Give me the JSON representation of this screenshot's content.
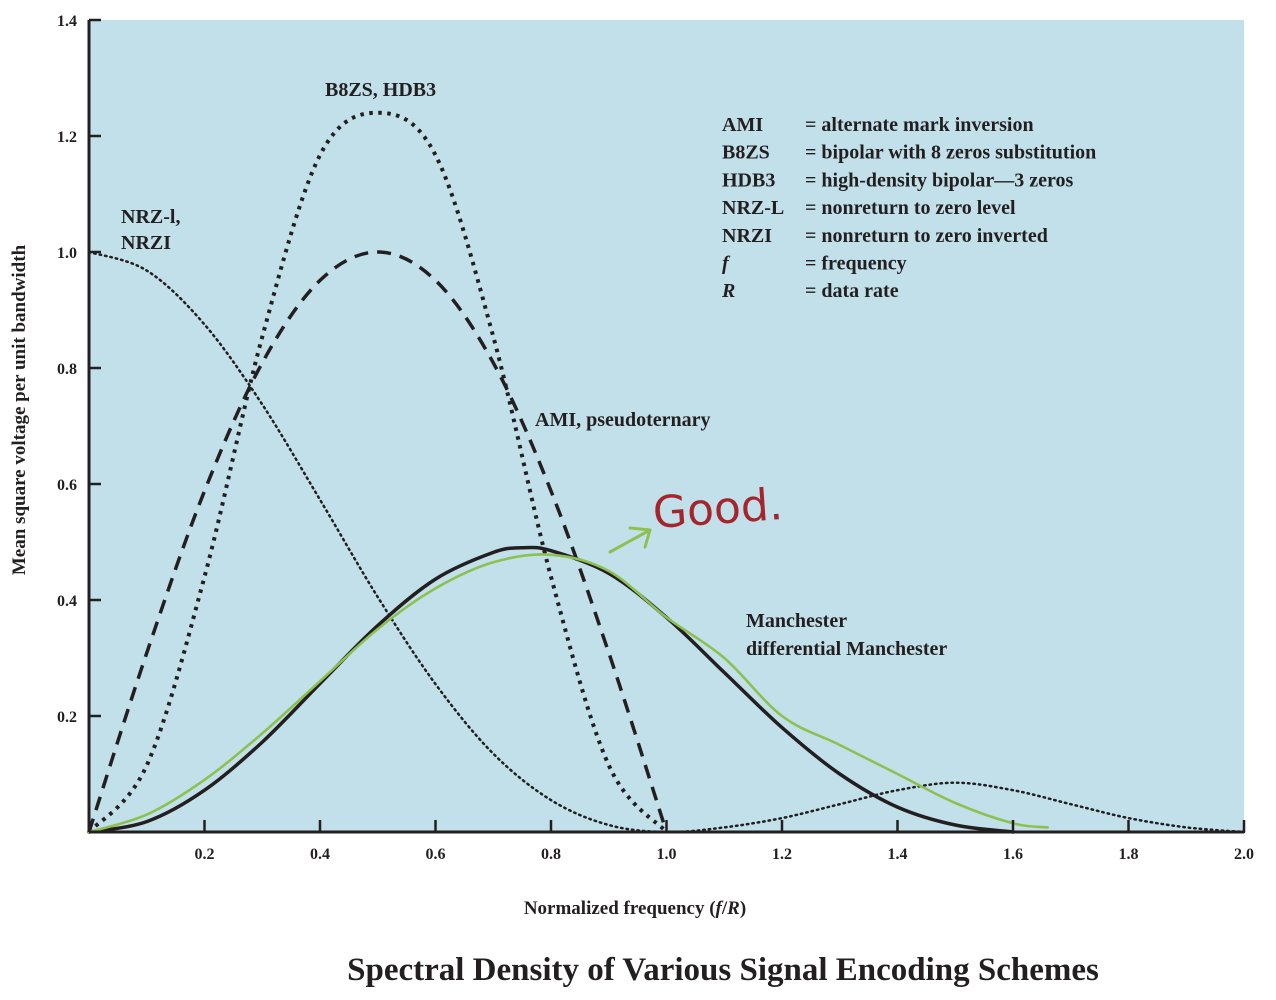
{
  "chart_data": {
    "type": "line",
    "title": "Spectral Density of Various Signal Encoding Schemes",
    "xlabel": "Normalized frequency (f/R)",
    "xlabel_parts": {
      "prefix": "Normalized frequency (",
      "f": "f",
      "slash": "/",
      "R": "R",
      "suffix": ")"
    },
    "ylabel": "Mean square voltage per unit bandwidth",
    "xlim": [
      0,
      2.0
    ],
    "ylim": [
      0,
      1.4
    ],
    "xticks": [
      {
        "v": 0.2,
        "label": "0.2"
      },
      {
        "v": 0.4,
        "label": "0.4"
      },
      {
        "v": 0.6,
        "label": "0.6"
      },
      {
        "v": 0.8,
        "label": "0.8"
      },
      {
        "v": 1.0,
        "label": "1.0"
      },
      {
        "v": 1.2,
        "label": "1.2"
      },
      {
        "v": 1.4,
        "label": "1.4"
      },
      {
        "v": 1.6,
        "label": "1.6"
      },
      {
        "v": 1.8,
        "label": "1.8"
      },
      {
        "v": 2.0,
        "label": "2.0"
      }
    ],
    "yticks": [
      {
        "v": 0.2,
        "label": "0.2"
      },
      {
        "v": 0.4,
        "label": "0.4"
      },
      {
        "v": 0.6,
        "label": "0.6"
      },
      {
        "v": 0.8,
        "label": "0.8"
      },
      {
        "v": 1.0,
        "label": "1.0"
      },
      {
        "v": 1.2,
        "label": "1.2"
      },
      {
        "v": 1.4,
        "label": "1.4"
      }
    ],
    "grid": false,
    "plot_background": "#c1e0ea",
    "series": [
      {
        "name": "NRZ-l, NRZI",
        "style": "dotted-fine",
        "x": [
          0,
          0.1,
          0.2,
          0.3,
          0.4,
          0.5,
          0.6,
          0.7,
          0.8,
          0.9,
          1.0,
          1.1,
          1.2,
          1.3,
          1.4,
          1.5,
          1.6,
          1.7,
          1.8,
          1.9,
          2.0
        ],
        "y": [
          1.0,
          0.968,
          0.875,
          0.737,
          0.573,
          0.405,
          0.255,
          0.135,
          0.055,
          0.012,
          0.0,
          0.008,
          0.024,
          0.048,
          0.072,
          0.085,
          0.072,
          0.048,
          0.024,
          0.008,
          0.0
        ]
      },
      {
        "name": "B8ZS, HDB3",
        "style": "dotted-heavy",
        "x": [
          0,
          0.1,
          0.2,
          0.3,
          0.4,
          0.5,
          0.6,
          0.7,
          0.8,
          0.9,
          1.0
        ],
        "y": [
          0.0,
          0.115,
          0.44,
          0.854,
          1.167,
          1.24,
          1.167,
          0.854,
          0.44,
          0.115,
          0.0
        ]
      },
      {
        "name": "AMI, pseudoternary",
        "style": "dashed",
        "x": [
          0,
          0.1,
          0.2,
          0.3,
          0.4,
          0.5,
          0.6,
          0.7,
          0.8,
          0.9,
          1.0
        ],
        "y": [
          0.0,
          0.309,
          0.588,
          0.809,
          0.951,
          1.0,
          0.951,
          0.809,
          0.588,
          0.309,
          0.0
        ]
      },
      {
        "name": "Manchester differential Manchester",
        "style": "solid",
        "x": [
          0,
          0.1,
          0.2,
          0.3,
          0.4,
          0.5,
          0.6,
          0.7,
          0.75,
          0.8,
          0.9,
          1.0,
          1.1,
          1.2,
          1.3,
          1.4,
          1.5,
          1.6
        ],
        "y": [
          0.0,
          0.018,
          0.072,
          0.155,
          0.256,
          0.356,
          0.436,
          0.482,
          0.49,
          0.485,
          0.446,
          0.37,
          0.275,
          0.18,
          0.1,
          0.043,
          0.012,
          0.0
        ]
      },
      {
        "name": "hand-drawn annotation",
        "style": "freehand-green",
        "x": [
          0,
          0.1,
          0.2,
          0.3,
          0.4,
          0.5,
          0.6,
          0.7,
          0.8,
          0.9,
          1.0,
          1.1,
          1.2,
          1.3,
          1.4,
          1.5,
          1.6,
          1.66
        ],
        "y": [
          0.0,
          0.03,
          0.09,
          0.17,
          0.26,
          0.35,
          0.42,
          0.465,
          0.478,
          0.45,
          0.37,
          0.3,
          0.2,
          0.15,
          0.1,
          0.05,
          0.015,
          0.008
        ]
      }
    ],
    "annotations": {
      "nrz": [
        "NRZ-l,",
        "NRZI"
      ],
      "b8zs": "B8ZS, HDB3",
      "ami": "AMI, pseudoternary",
      "manchester": [
        "Manchester",
        "differential Manchester"
      ]
    },
    "legend": {
      "placement": "top-right",
      "items": [
        {
          "abbr": "AMI",
          "def": "= alternate mark inversion",
          "italic": false
        },
        {
          "abbr": "B8ZS",
          "def": "= bipolar with 8 zeros substitution",
          "italic": false
        },
        {
          "abbr": "HDB3",
          "def": "= high-density bipolar—3 zeros",
          "italic": false
        },
        {
          "abbr": "NRZ-L",
          "def": "= nonreturn to zero level",
          "italic": false
        },
        {
          "abbr": "NRZI",
          "def": "= nonreturn to zero inverted",
          "italic": false
        },
        {
          "abbr": "f",
          "def": "= frequency",
          "italic": true
        },
        {
          "abbr": "R",
          "def": "= data rate",
          "italic": true
        }
      ]
    },
    "handwritten_note": "Good."
  },
  "colors": {
    "plot_bg": "#c1e0ea",
    "ink": "#231f20",
    "annotation_green": "#8cc152",
    "annotation_red": "#a4262c"
  }
}
